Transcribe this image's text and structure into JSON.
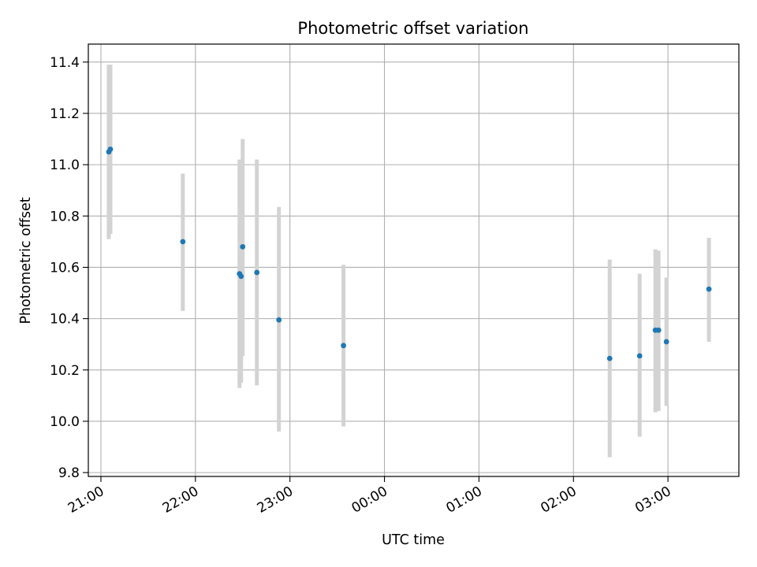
{
  "chart_data": {
    "type": "scatter",
    "title": "Photometric offset variation",
    "xlabel": "UTC time",
    "ylabel": "Photometric offset",
    "grid": true,
    "x_ticks": [
      "21:00",
      "22:00",
      "23:00",
      "00:00",
      "01:00",
      "02:00",
      "03:00"
    ],
    "y_ticks": [
      "9.8",
      "10.0",
      "10.2",
      "10.4",
      "10.6",
      "10.8",
      "11.0",
      "11.2",
      "11.4"
    ],
    "xlim": [
      "20:52",
      "03:45"
    ],
    "ylim": [
      9.785,
      11.47
    ],
    "colors": {
      "points": "#1f77b4",
      "errorbars": "#d3d3d3",
      "grid": "#b0b0b0"
    },
    "points": [
      {
        "x": "21:05",
        "y": 11.05,
        "yerr_low": 10.71,
        "yerr_high": 11.39
      },
      {
        "x": "21:06",
        "y": 11.06,
        "yerr_low": 10.73,
        "yerr_high": 11.39
      },
      {
        "x": "21:52",
        "y": 10.7,
        "yerr_low": 10.43,
        "yerr_high": 10.965
      },
      {
        "x": "22:28",
        "y": 10.575,
        "yerr_low": 10.13,
        "yerr_high": 11.02
      },
      {
        "x": "22:29",
        "y": 10.565,
        "yerr_low": 10.15,
        "yerr_high": 11.0
      },
      {
        "x": "22:30",
        "y": 10.68,
        "yerr_low": 10.255,
        "yerr_high": 11.1
      },
      {
        "x": "22:39",
        "y": 10.58,
        "yerr_low": 10.14,
        "yerr_high": 11.02
      },
      {
        "x": "22:53",
        "y": 10.395,
        "yerr_low": 9.96,
        "yerr_high": 10.835
      },
      {
        "x": "23:34",
        "y": 10.295,
        "yerr_low": 9.98,
        "yerr_high": 10.61
      },
      {
        "x": "02:23",
        "y": 10.245,
        "yerr_low": 9.86,
        "yerr_high": 10.63
      },
      {
        "x": "02:42",
        "y": 10.255,
        "yerr_low": 9.94,
        "yerr_high": 10.575
      },
      {
        "x": "02:52",
        "y": 10.355,
        "yerr_low": 10.035,
        "yerr_high": 10.67
      },
      {
        "x": "02:54",
        "y": 10.355,
        "yerr_low": 10.04,
        "yerr_high": 10.665
      },
      {
        "x": "02:59",
        "y": 10.31,
        "yerr_low": 10.06,
        "yerr_high": 10.56
      },
      {
        "x": "03:26",
        "y": 10.515,
        "yerr_low": 10.31,
        "yerr_high": 10.715
      }
    ]
  }
}
